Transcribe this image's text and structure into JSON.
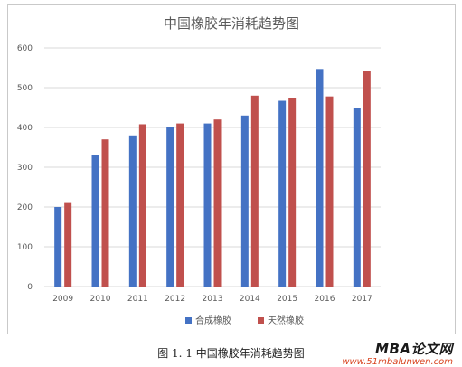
{
  "chart_data": {
    "type": "bar",
    "title": "中国橡胶年消耗趋势图",
    "categories": [
      "2009",
      "2010",
      "2011",
      "2012",
      "2013",
      "2014",
      "2015",
      "2016",
      "2017"
    ],
    "series": [
      {
        "name": "合成橡胶",
        "color": "#4472c4",
        "values": [
          200,
          330,
          380,
          400,
          410,
          430,
          467,
          547,
          450
        ]
      },
      {
        "name": "天然橡胶",
        "color": "#c0504d",
        "values": [
          210,
          370,
          408,
          410,
          420,
          480,
          475,
          478,
          542
        ]
      }
    ],
    "ylim": [
      0,
      600
    ],
    "yticks": [
      0,
      100,
      200,
      300,
      400,
      500,
      600
    ],
    "grid": true,
    "legend": "bottom"
  },
  "caption": "图 1. 1 中国橡胶年消耗趋势图",
  "watermark": {
    "title": "MBA论文网",
    "url": "www.51mbalunwen.com"
  }
}
